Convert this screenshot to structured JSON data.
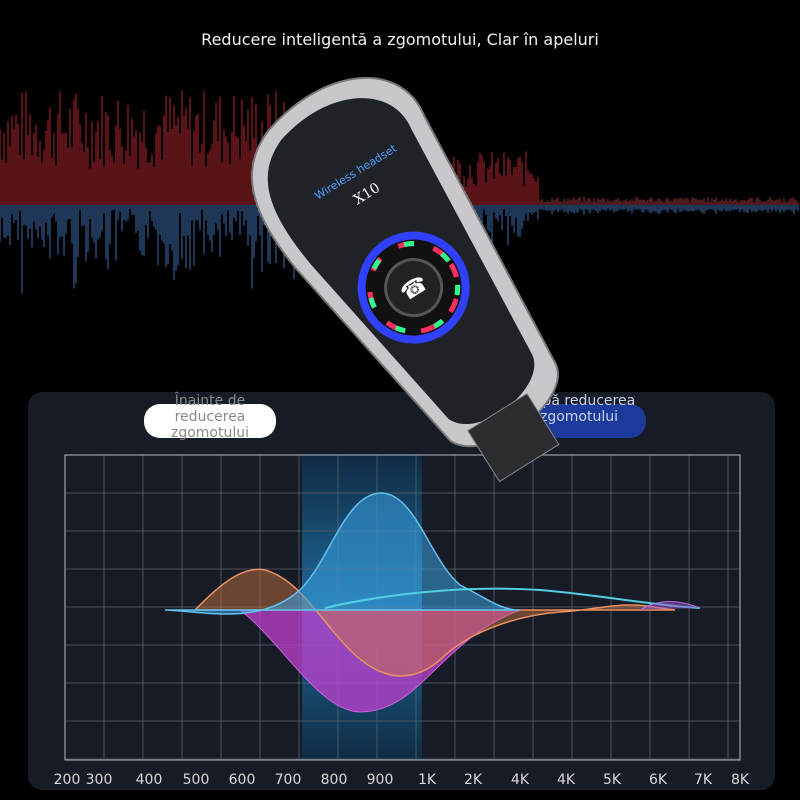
{
  "header": {
    "title": "Reducere inteligentă a zgomotului, Clar în apeluri"
  },
  "device": {
    "brand_text": "Wireless headset",
    "model_text": "X10"
  },
  "legend": {
    "before": "Înainte de reducerea zgomotului",
    "after": "După reducerea zgomotului"
  },
  "axis": {
    "ticks": [
      "200",
      "300",
      "400",
      "500",
      "600",
      "700",
      "800",
      "900",
      "1K",
      "2K",
      "4K",
      "4K",
      "5K",
      "6K",
      "7K",
      "8K"
    ]
  },
  "colors": {
    "background": "#000000",
    "panel": "#171b25",
    "highlight": "#1e5a8a",
    "blue_curve": "#3aa0e0",
    "orange_curve": "#e08a50",
    "magenta_curve": "#c040d0",
    "after_pill": "#1c3a9a"
  }
}
